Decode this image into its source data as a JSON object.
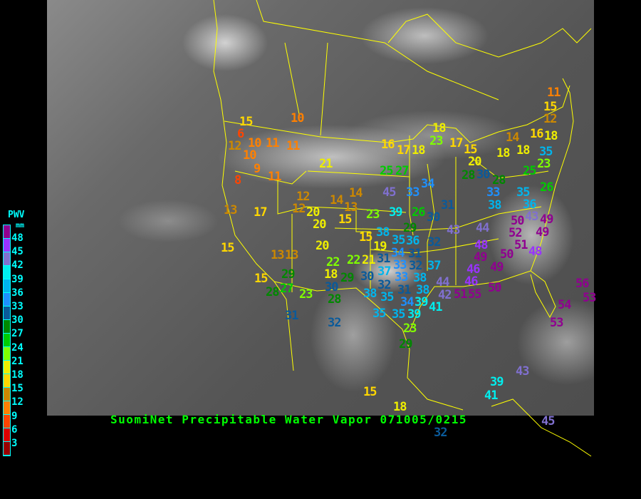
{
  "title": "SuomiNet Precipitable Water Vapor 071005/0215",
  "legend": {
    "title": "PWV",
    "unit": "mm",
    "ticks": [
      "48",
      "45",
      "42",
      "39",
      "36",
      "33",
      "30",
      "27",
      "24",
      "21",
      "18",
      "15",
      "12",
      "9",
      "6",
      "3"
    ],
    "colors": [
      "#900090",
      "#9933ff",
      "#8070d0",
      "#00eeee",
      "#00b4ec",
      "#1e90ff",
      "#0a5a9a",
      "#008800",
      "#00cc00",
      "#80ff00",
      "#eeee00",
      "#ffd700",
      "#cc8800",
      "#ff8000",
      "#ff4400",
      "#dd0000",
      "#990000"
    ]
  },
  "border_color": "#ffff00",
  "stations": [
    15,
    6,
    12,
    10,
    11,
    10,
    11,
    10,
    9,
    11,
    8,
    21,
    13,
    17,
    12,
    12,
    14,
    14,
    13,
    20,
    20,
    15,
    23,
    39,
    26,
    30,
    29,
    45,
    33,
    34,
    31,
    43,
    16,
    17,
    18,
    18,
    23,
    17,
    15,
    20,
    25,
    27,
    28,
    30,
    28,
    33,
    38,
    14,
    18,
    18,
    16,
    18,
    11,
    15,
    12,
    35,
    23,
    25,
    26,
    35,
    36,
    43,
    44,
    48,
    50,
    49,
    52,
    49,
    51,
    50,
    48,
    49,
    49,
    46,
    46,
    50,
    55,
    44,
    42,
    51,
    54,
    53,
    56,
    53,
    15,
    13,
    13,
    29,
    15,
    27,
    28,
    23,
    31,
    20,
    22,
    22,
    21,
    18,
    29,
    30,
    28,
    32,
    15,
    19,
    38,
    35,
    34,
    36,
    31,
    31,
    32,
    33,
    32,
    37,
    33,
    38,
    37,
    30,
    32,
    31,
    38,
    35,
    38,
    34,
    39,
    41,
    35,
    35,
    39,
    23,
    29,
    15,
    39,
    43,
    41,
    18,
    45,
    32
  ]
}
